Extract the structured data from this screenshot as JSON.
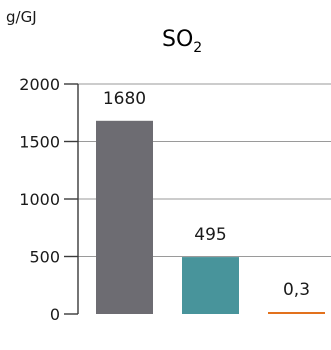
{
  "chart_data": {
    "type": "bar",
    "title": "SO",
    "title_subscript": "2",
    "unit": "g/GJ",
    "categories": [
      "",
      "",
      ""
    ],
    "values": [
      1680,
      495,
      0.3
    ],
    "value_labels": [
      "1680",
      "495",
      "0,3"
    ],
    "colors": [
      "#6d6c72",
      "#48949b",
      "#e2711d"
    ],
    "ylim": [
      0,
      2000
    ],
    "yticks": [
      0,
      500,
      1000,
      1500,
      2000
    ],
    "ytick_labels": [
      "0",
      "500",
      "1000",
      "1500",
      "2000"
    ],
    "grid": true,
    "grid_color": "#9a9a9a",
    "axis_color": "#3a3a3a"
  }
}
